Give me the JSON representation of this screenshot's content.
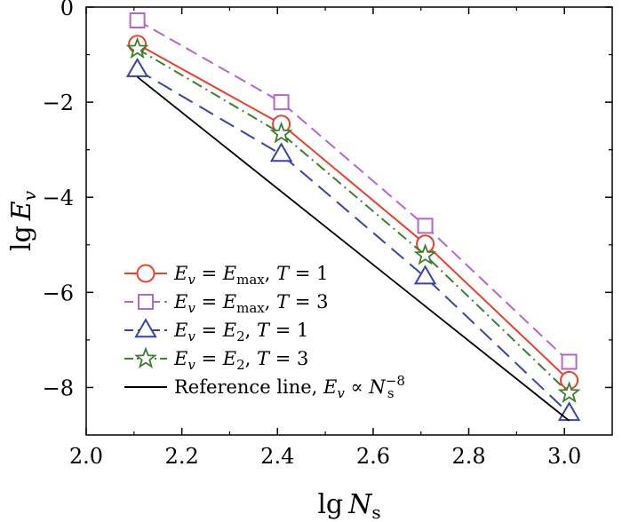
{
  "chart_data": {
    "type": "line",
    "xlabel": {
      "base": "lg",
      "var": "N",
      "sub": "s"
    },
    "ylabel": {
      "base": "lg",
      "var": "E",
      "sub": "v"
    },
    "xlim": [
      2.0,
      3.1
    ],
    "ylim": [
      -9.0,
      0.0
    ],
    "xticks": [
      2.0,
      2.2,
      2.4,
      2.6,
      2.8,
      3.0
    ],
    "xtick_labels": [
      "2.0",
      "2.2",
      "2.4",
      "2.6",
      "2.8",
      "3.0"
    ],
    "yticks": [
      0,
      -2,
      -4,
      -6,
      -8
    ],
    "ytick_labels": [
      "0",
      "−2",
      "−4",
      "−6",
      "−8"
    ],
    "grid": false,
    "legend_position": "bottom-left",
    "series": [
      {
        "name": "Ev = Emax, T = 1",
        "label_parts": {
          "lhs_var": "E",
          "lhs_sub": "v",
          "eq": " = ",
          "rhs_var": "E",
          "rhs_sub": "max",
          "tail_pre": ", ",
          "tail_var": "T",
          "tail_post": " = 1"
        },
        "color": "#e8412c",
        "dash": "solid",
        "marker": "circle",
        "x": [
          2.107,
          2.408,
          2.709,
          3.01
        ],
        "y": [
          -0.78,
          -2.46,
          -4.98,
          -7.85
        ]
      },
      {
        "name": "Ev = Emax, T = 3",
        "label_parts": {
          "lhs_var": "E",
          "lhs_sub": "v",
          "eq": " = ",
          "rhs_var": "E",
          "rhs_sub": "max",
          "tail_pre": ", ",
          "tail_var": "T",
          "tail_post": " = 3"
        },
        "color": "#b367c9",
        "dash": "dashed",
        "marker": "square",
        "x": [
          2.107,
          2.408,
          2.709,
          3.01
        ],
        "y": [
          -0.28,
          -2.0,
          -4.6,
          -7.46
        ]
      },
      {
        "name": "Ev = E2, T = 1",
        "label_parts": {
          "lhs_var": "E",
          "lhs_sub": "v",
          "eq": " = ",
          "rhs_var": "E",
          "rhs_sub": "2",
          "tail_pre": ", ",
          "tail_var": "T",
          "tail_post": " = 1"
        },
        "color": "#3a43a6",
        "dash": "longdash",
        "marker": "triangle",
        "x": [
          2.107,
          2.408,
          2.709,
          3.01
        ],
        "y": [
          -1.32,
          -3.1,
          -5.68,
          -8.55
        ]
      },
      {
        "name": "Ev = E2, T = 3",
        "label_parts": {
          "lhs_var": "E",
          "lhs_sub": "v",
          "eq": " = ",
          "rhs_var": "E",
          "rhs_sub": "2",
          "tail_pre": ", ",
          "tail_var": "T",
          "tail_post": " = 3"
        },
        "color": "#3c7f2c",
        "dash": "dashdot",
        "marker": "star",
        "x": [
          2.107,
          2.408,
          2.709,
          3.01
        ],
        "y": [
          -0.88,
          -2.66,
          -5.22,
          -8.12
        ]
      },
      {
        "name": "Reference line, Ev ∝ Ns^-8",
        "label_parts": {
          "prefix": "Reference line, ",
          "lhs_var": "E",
          "lhs_sub": "v",
          "rel": " ∝ ",
          "rhs_var": "N",
          "rhs_sub": "s",
          "rhs_sup": "−8"
        },
        "color": "#000000",
        "dash": "solid",
        "marker": "none",
        "x": [
          2.107,
          3.01
        ],
        "y": [
          -1.47,
          -8.7
        ]
      }
    ]
  }
}
